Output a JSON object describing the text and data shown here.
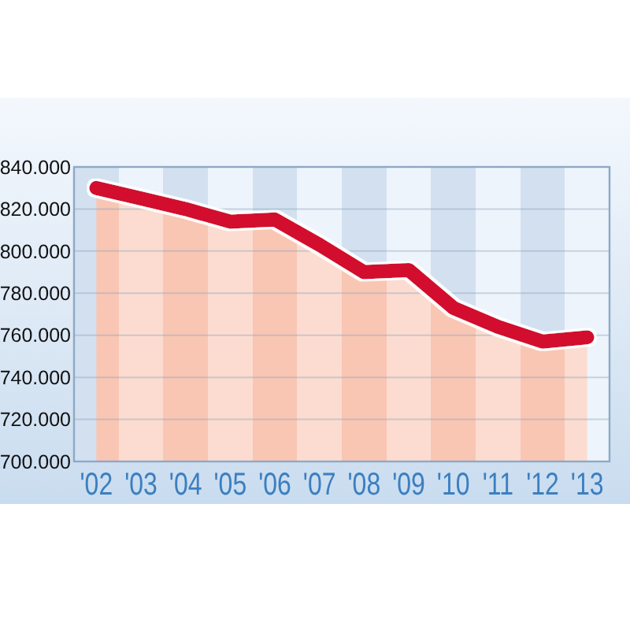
{
  "chart_data": {
    "type": "area",
    "categories": [
      "'02",
      "'03",
      "'04",
      "'05",
      "'06",
      "'07",
      "'08",
      "'09",
      "'10",
      "'11",
      "'12",
      "'13"
    ],
    "series": [
      {
        "color": "#d2102e",
        "values": [
          830000,
          825000,
          820000,
          814000,
          815000,
          803000,
          790000,
          791000,
          773000,
          764000,
          757000,
          759000
        ]
      }
    ],
    "ylim": [
      700000,
      840000
    ],
    "yticks": [
      {
        "value": 700000,
        "label": "700.000"
      },
      {
        "value": 720000,
        "label": "720.000"
      },
      {
        "value": 740000,
        "label": "740.000"
      },
      {
        "value": 760000,
        "label": "760.000"
      },
      {
        "value": 780000,
        "label": "780.000"
      },
      {
        "value": 800000,
        "label": "800.000"
      },
      {
        "value": 820000,
        "label": "820.000"
      },
      {
        "value": 840000,
        "label": "840.000"
      }
    ],
    "grid": "y"
  }
}
